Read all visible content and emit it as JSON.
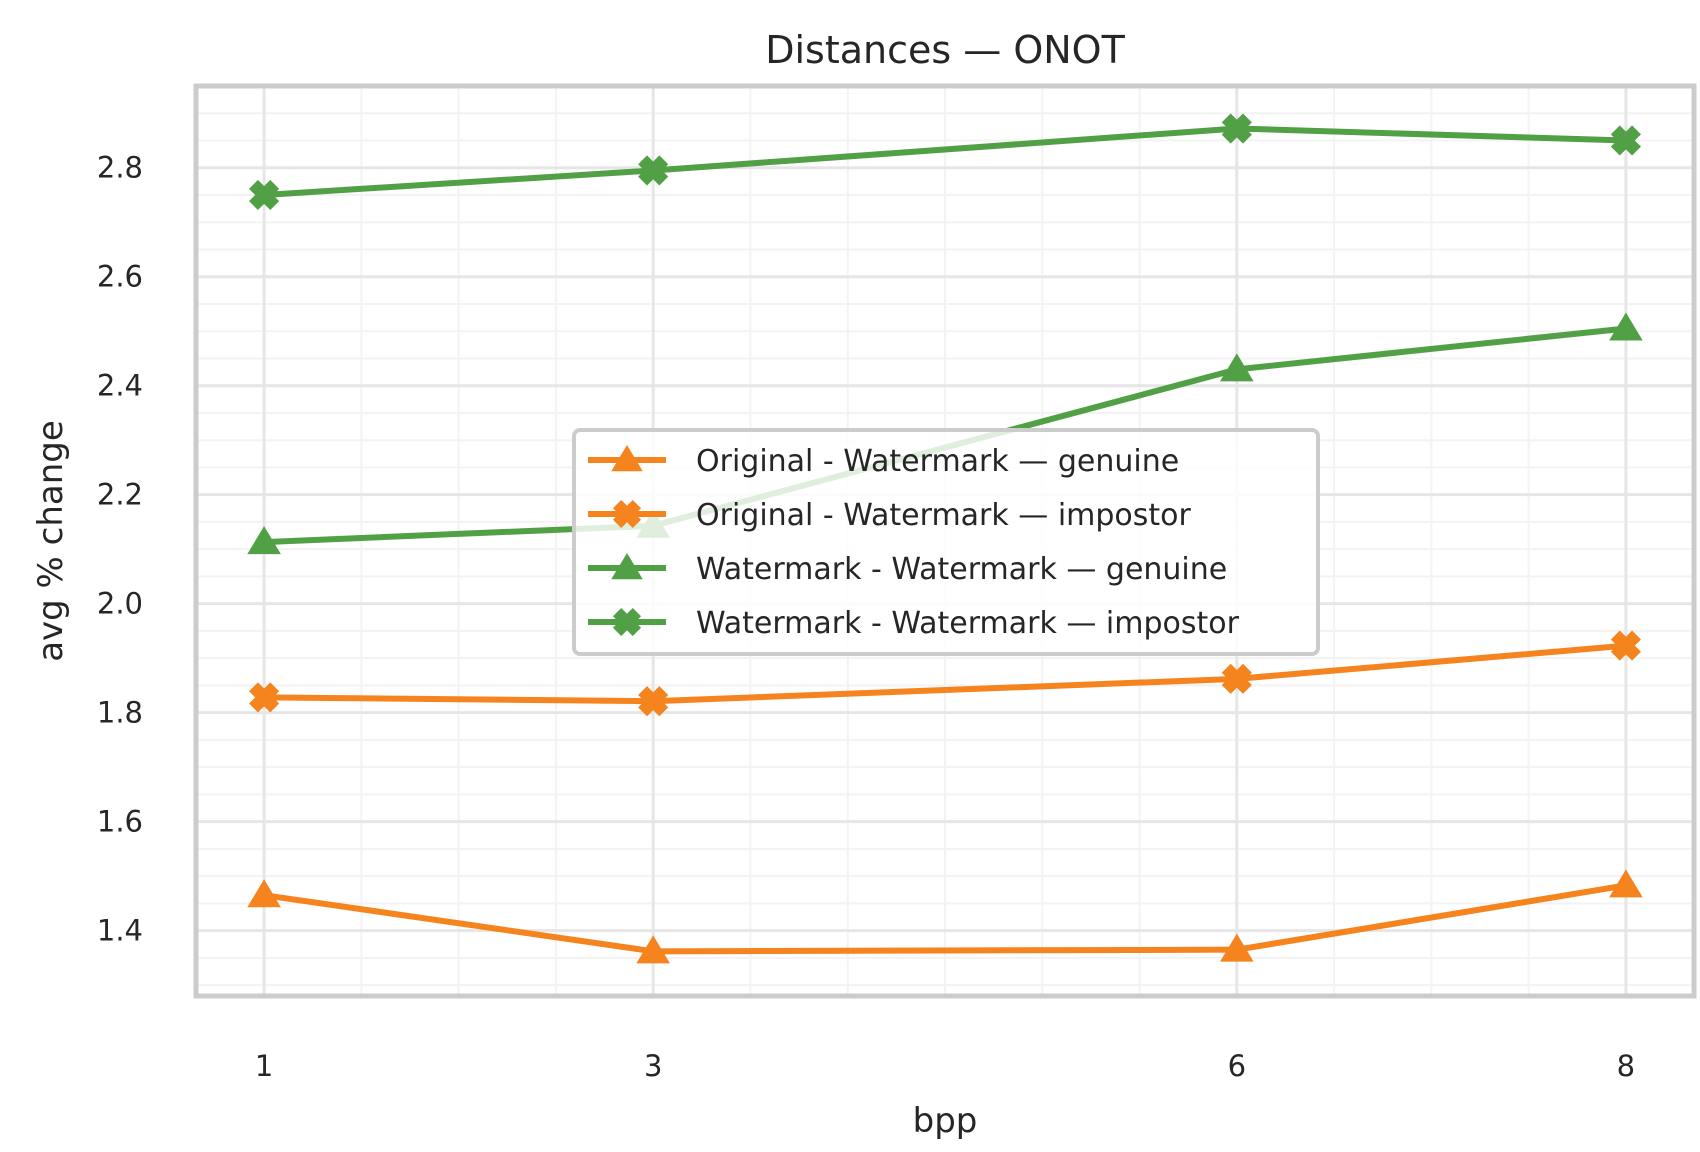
{
  "chart_data": {
    "type": "line",
    "title": "Distances — ONOT",
    "xlabel": "bpp",
    "ylabel": "avg % change",
    "x": [
      1,
      3,
      6,
      8
    ],
    "x_tick_labels": [
      "1",
      "3",
      "6",
      "8"
    ],
    "xlim": [
      0.65,
      8.35
    ],
    "ylim": [
      1.28,
      2.95
    ],
    "y_ticks": [
      1.4,
      1.6,
      1.8,
      2.0,
      2.2,
      2.4,
      2.6,
      2.8
    ],
    "y_tick_labels": [
      "1.4",
      "1.6",
      "1.8",
      "2.0",
      "2.2",
      "2.4",
      "2.6",
      "2.8"
    ],
    "grid": true,
    "legend_position": "center",
    "series": [
      {
        "name": "Original - Watermark — genuine",
        "color": "#f5841f",
        "marker": "triangle",
        "values": [
          1.465,
          1.362,
          1.365,
          1.483
        ]
      },
      {
        "name": "Original - Watermark — impostor",
        "color": "#f5841f",
        "marker": "x",
        "values": [
          1.828,
          1.821,
          1.862,
          1.923
        ]
      },
      {
        "name": "Watermark - Watermark — genuine",
        "color": "#52a046",
        "marker": "triangle",
        "values": [
          2.113,
          2.143,
          2.43,
          2.505
        ]
      },
      {
        "name": "Watermark - Watermark — impostor",
        "color": "#52a046",
        "marker": "x",
        "values": [
          2.75,
          2.795,
          2.872,
          2.85
        ]
      }
    ]
  }
}
